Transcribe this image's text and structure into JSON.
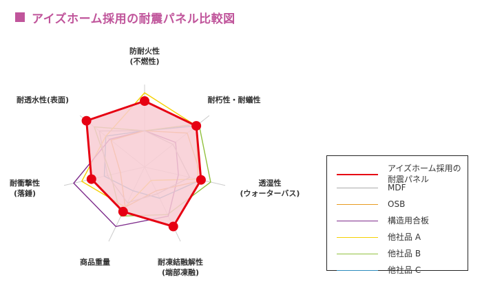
{
  "title": "アイズホーム採用の耐震パネル比較図",
  "title_color": "#c0559b",
  "chart_data": {
    "type": "radar",
    "title": "アイズホーム採用の耐震パネル比較図",
    "axes": [
      [
        "防耐火性",
        "(不燃性)"
      ],
      [
        "耐朽性・耐蟻性"
      ],
      [
        "透湿性",
        "(ウォーターバス)"
      ],
      [
        "耐凍結融解性",
        "(端部凍融)"
      ],
      [
        "商品重量"
      ],
      [
        "耐衝撃性",
        "(落錘)"
      ],
      [
        "耐透水性(表面)"
      ]
    ],
    "max": 5,
    "grid": true,
    "legend_position": "bottom-right",
    "series": [
      {
        "name": "アイズホーム採用の耐震パネル",
        "color": "#e60012",
        "values": [
          4,
          4,
          3.5,
          4,
          3,
          3.3,
          4.5
        ],
        "fill": "#f8cdd3",
        "markers": true,
        "width": 3
      },
      {
        "name": "MDF",
        "color": "#aaaaaa",
        "values": [
          2.2,
          2.2,
          2.8,
          1.8,
          2.4,
          2.3,
          3.5
        ],
        "width": 1.4
      },
      {
        "name": "OSB",
        "color": "#e89a1e",
        "values": [
          2.2,
          3.3,
          3.6,
          1.6,
          2.7,
          1.5,
          2.6
        ],
        "width": 1.4
      },
      {
        "name": "構造用合板",
        "color": "#7d2b8b",
        "values": [
          2.2,
          2.4,
          2.1,
          3.3,
          4.0,
          4.4,
          2.7
        ],
        "width": 1.4
      },
      {
        "name": "他社品 A",
        "color": "#f5d000",
        "values": [
          4.5,
          4.0,
          3.3,
          0.9,
          2.7,
          3.9,
          3.0
        ],
        "width": 1.4
      },
      {
        "name": "他社品 B",
        "color": "#92c13e",
        "values": [
          2.2,
          4.2,
          4.1,
          3.2,
          3.3,
          2.1,
          3.9
        ],
        "width": 1.4
      },
      {
        "name": "他社品 C",
        "color": "#2b8bbd",
        "values": [
          2.2,
          4.0,
          3.5,
          2.1,
          1.6,
          2.5,
          3.0
        ],
        "width": 1.4
      }
    ]
  },
  "legend": [
    {
      "label": "アイズホーム採用の耐震パネル",
      "color": "#e60012"
    },
    {
      "label": "MDF",
      "color": "#aaaaaa"
    },
    {
      "label": "OSB",
      "color": "#e89a1e"
    },
    {
      "label": "構造用合板",
      "color": "#7d2b8b"
    },
    {
      "label": "他社品 A",
      "color": "#f5d000"
    },
    {
      "label": "他社品 B",
      "color": "#92c13e"
    },
    {
      "label": "他社品 C",
      "color": "#2b8bbd"
    }
  ]
}
